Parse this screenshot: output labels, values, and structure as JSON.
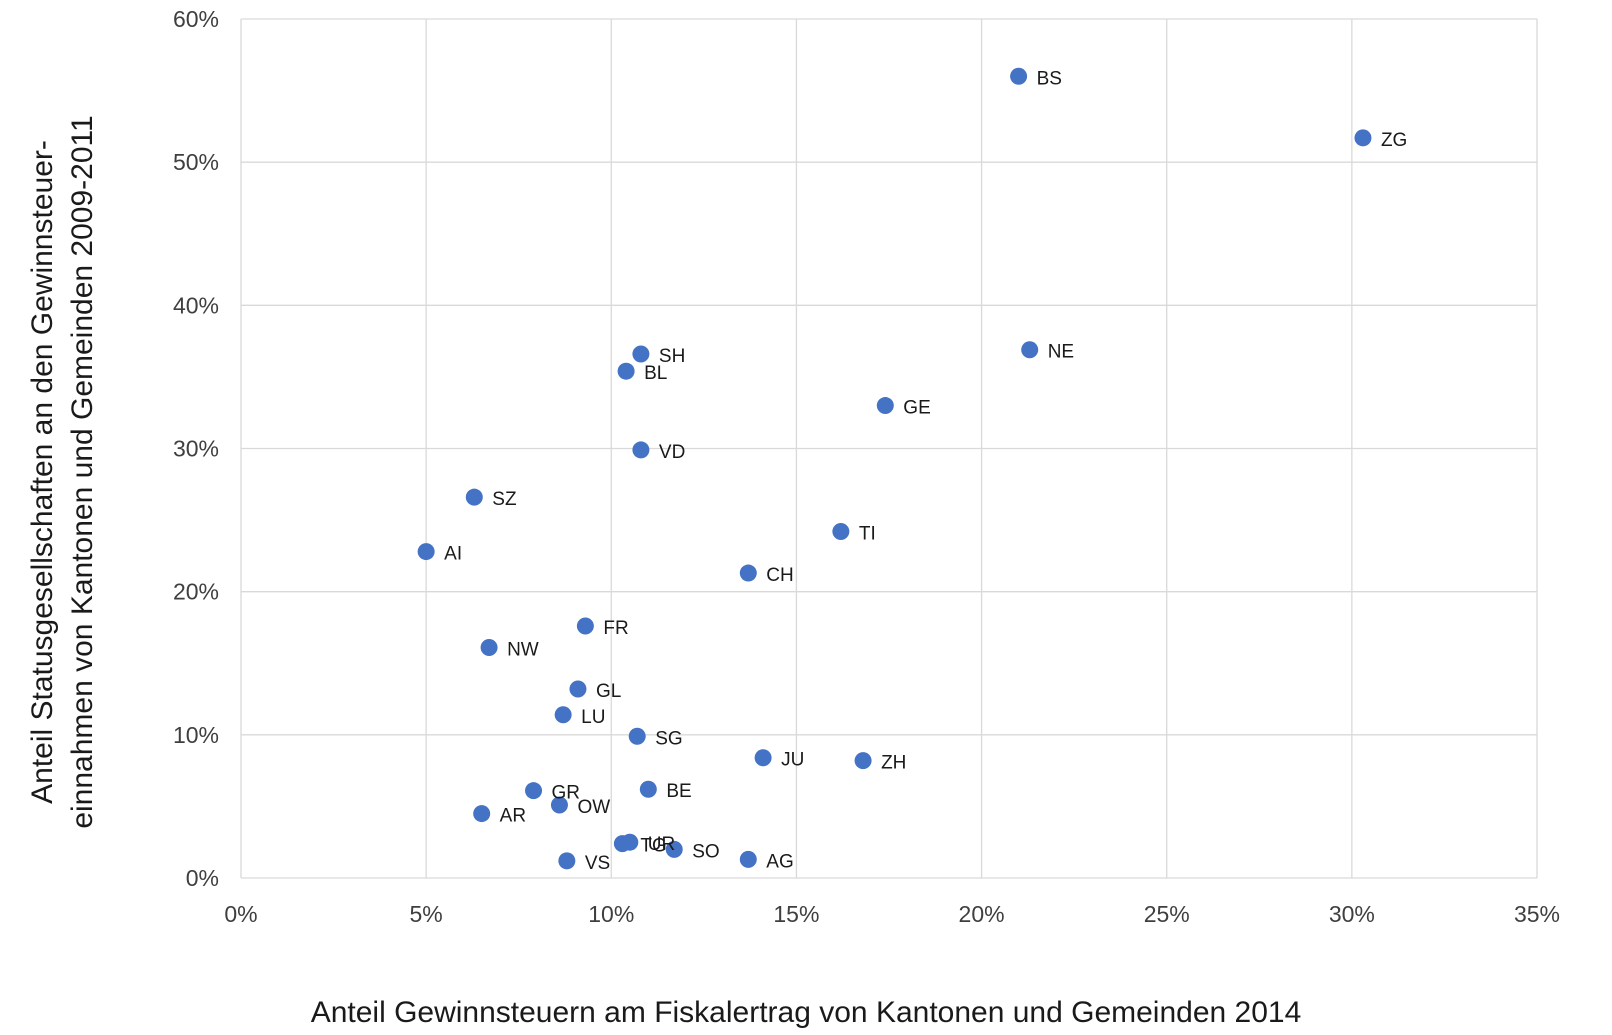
{
  "chart_data": {
    "type": "scatter",
    "xlabel": "Anteil Gewinnsteuern am Fiskalertrag von Kantonen und Gemeinden 2014",
    "ylabel_lines": [
      "Anteil Statusgesellschaften an den Gewinnsteuer-",
      "einnahmen von Kantonen und Gemeinden 2009-2011"
    ],
    "xlim": [
      0,
      35
    ],
    "ylim": [
      0,
      60
    ],
    "x_ticks": [
      0,
      5,
      10,
      15,
      20,
      25,
      30,
      35
    ],
    "y_ticks": [
      0,
      10,
      20,
      30,
      40,
      50,
      60
    ],
    "x_tick_labels": [
      "0%",
      "5%",
      "10%",
      "15%",
      "20%",
      "25%",
      "30%",
      "35%"
    ],
    "y_tick_labels": [
      "0%",
      "10%",
      "20%",
      "30%",
      "40%",
      "50%",
      "60%"
    ],
    "grid": true,
    "marker_color": "#4472c4",
    "points": [
      {
        "label": "BS",
        "x": 21.0,
        "y": 56.0
      },
      {
        "label": "ZG",
        "x": 30.3,
        "y": 51.7
      },
      {
        "label": "NE",
        "x": 21.3,
        "y": 36.9
      },
      {
        "label": "SH",
        "x": 10.8,
        "y": 36.6
      },
      {
        "label": "BL",
        "x": 10.4,
        "y": 35.4
      },
      {
        "label": "GE",
        "x": 17.4,
        "y": 33.0
      },
      {
        "label": "VD",
        "x": 10.8,
        "y": 29.9
      },
      {
        "label": "SZ",
        "x": 6.3,
        "y": 26.6
      },
      {
        "label": "TI",
        "x": 16.2,
        "y": 24.2
      },
      {
        "label": "AI",
        "x": 5.0,
        "y": 22.8
      },
      {
        "label": "CH",
        "x": 13.7,
        "y": 21.3
      },
      {
        "label": "FR",
        "x": 9.3,
        "y": 17.6
      },
      {
        "label": "NW",
        "x": 6.7,
        "y": 16.1
      },
      {
        "label": "GL",
        "x": 9.1,
        "y": 13.2
      },
      {
        "label": "LU",
        "x": 8.7,
        "y": 11.4
      },
      {
        "label": "SG",
        "x": 10.7,
        "y": 9.9
      },
      {
        "label": "JU",
        "x": 14.1,
        "y": 8.4
      },
      {
        "label": "ZH",
        "x": 16.8,
        "y": 8.2
      },
      {
        "label": "GR",
        "x": 7.9,
        "y": 6.1
      },
      {
        "label": "BE",
        "x": 11.0,
        "y": 6.2
      },
      {
        "label": "OW",
        "x": 8.6,
        "y": 5.1
      },
      {
        "label": "AR",
        "x": 6.5,
        "y": 4.5
      },
      {
        "label": "UR",
        "x": 10.5,
        "y": 2.5
      },
      {
        "label": "TG",
        "x": 10.3,
        "y": 2.4
      },
      {
        "label": "SO",
        "x": 11.7,
        "y": 2.0
      },
      {
        "label": "VS",
        "x": 8.8,
        "y": 1.2
      },
      {
        "label": "AG",
        "x": 13.7,
        "y": 1.3
      }
    ]
  }
}
